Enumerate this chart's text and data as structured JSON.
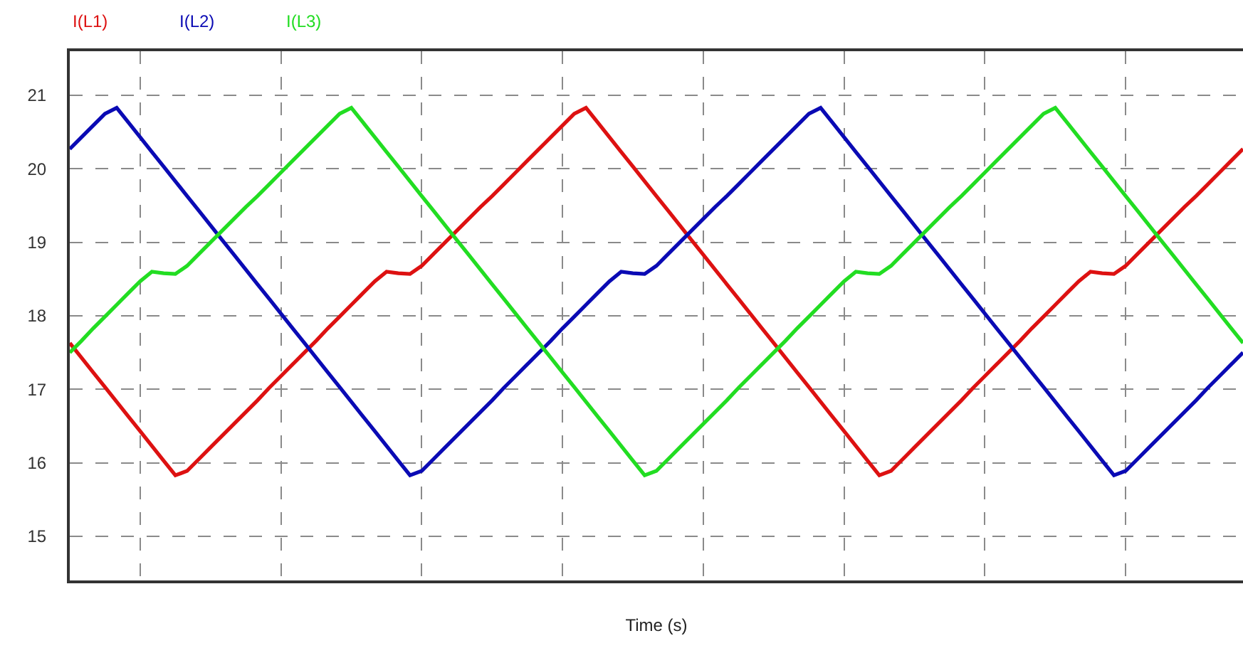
{
  "chart_data": {
    "type": "line",
    "xlabel": "Time (s)",
    "categories": [
      null,
      null,
      null,
      null,
      null,
      null,
      null,
      null,
      null,
      null,
      null,
      null,
      null,
      null,
      null,
      null,
      null,
      null,
      null,
      null,
      null,
      null,
      null,
      null,
      null,
      null,
      null,
      null,
      null,
      null,
      null,
      null,
      null,
      null,
      null,
      null,
      null,
      null,
      null,
      null,
      null,
      null,
      null,
      null,
      null,
      null,
      null,
      null,
      null,
      null,
      null,
      null,
      null,
      null,
      null,
      null,
      null,
      null,
      null,
      null,
      null,
      null,
      null,
      null,
      null,
      null,
      null,
      null,
      null,
      null,
      null,
      null,
      null,
      null,
      null,
      null,
      null,
      null,
      null,
      null,
      null,
      null,
      null,
      null,
      null,
      null,
      null,
      null,
      null,
      null,
      null,
      null,
      null,
      null,
      null,
      null,
      null,
      null,
      null,
      null,
      null
    ],
    "ylim": [
      14.4,
      21.6
    ],
    "yticks": [
      15,
      16,
      17,
      18,
      19,
      20,
      21
    ],
    "grid": true,
    "legend": "top left",
    "tick_labels": "y",
    "series": [
      {
        "name": "I(L1)",
        "color": "#dd1111",
        "values": [
          17.63,
          17.43,
          17.23,
          17.03,
          16.83,
          16.63,
          16.43,
          16.23,
          16.03,
          15.83,
          15.89,
          16.05,
          16.21,
          16.37,
          16.53,
          16.69,
          16.85,
          17.02,
          17.18,
          17.34,
          17.5,
          17.66,
          17.83,
          17.99,
          18.15,
          18.31,
          18.47,
          18.6,
          18.58,
          18.57,
          18.68,
          18.84,
          19.0,
          19.16,
          19.32,
          19.48,
          19.63,
          19.79,
          19.95,
          20.11,
          20.27,
          20.43,
          20.59,
          20.75,
          20.83,
          20.63,
          20.43,
          20.23,
          20.03,
          19.83,
          19.63,
          19.43,
          19.23,
          19.03,
          18.83,
          18.63,
          18.43,
          18.23,
          18.03,
          17.83,
          17.63,
          17.43,
          17.23,
          17.03,
          16.83,
          16.63,
          16.43,
          16.23,
          16.03,
          15.83,
          15.89,
          16.05,
          16.21,
          16.37,
          16.53,
          16.69,
          16.85,
          17.02,
          17.18,
          17.34,
          17.5,
          17.66,
          17.83,
          17.99,
          18.15,
          18.31,
          18.47,
          18.6,
          18.58,
          18.57,
          18.68,
          18.84,
          19.0,
          19.16,
          19.32,
          19.48,
          19.63,
          19.79,
          19.95,
          20.11,
          20.27
        ]
      },
      {
        "name": "I(L2)",
        "color": "#0a0ab4",
        "values": [
          20.27,
          20.43,
          20.59,
          20.75,
          20.83,
          20.63,
          20.43,
          20.23,
          20.03,
          19.83,
          19.63,
          19.43,
          19.23,
          19.03,
          18.83,
          18.63,
          18.43,
          18.23,
          18.03,
          17.83,
          17.63,
          17.43,
          17.23,
          17.03,
          16.83,
          16.63,
          16.43,
          16.23,
          16.03,
          15.83,
          15.89,
          16.05,
          16.21,
          16.37,
          16.53,
          16.69,
          16.85,
          17.02,
          17.18,
          17.34,
          17.5,
          17.66,
          17.83,
          17.99,
          18.15,
          18.31,
          18.47,
          18.6,
          18.58,
          18.57,
          18.68,
          18.84,
          19.0,
          19.16,
          19.32,
          19.48,
          19.63,
          19.79,
          19.95,
          20.11,
          20.27,
          20.43,
          20.59,
          20.75,
          20.83,
          20.63,
          20.43,
          20.23,
          20.03,
          19.83,
          19.63,
          19.43,
          19.23,
          19.03,
          18.83,
          18.63,
          18.43,
          18.23,
          18.03,
          17.83,
          17.63,
          17.43,
          17.23,
          17.03,
          16.83,
          16.63,
          16.43,
          16.23,
          16.03,
          15.83,
          15.89,
          16.05,
          16.21,
          16.37,
          16.53,
          16.69,
          16.85,
          17.02,
          17.18,
          17.34,
          17.5
        ]
      },
      {
        "name": "I(L3)",
        "color": "#22dd22",
        "values": [
          17.5,
          17.66,
          17.83,
          17.99,
          18.15,
          18.31,
          18.47,
          18.6,
          18.58,
          18.57,
          18.68,
          18.84,
          19.0,
          19.16,
          19.32,
          19.48,
          19.63,
          19.79,
          19.95,
          20.11,
          20.27,
          20.43,
          20.59,
          20.75,
          20.83,
          20.63,
          20.43,
          20.23,
          20.03,
          19.83,
          19.63,
          19.43,
          19.23,
          19.03,
          18.83,
          18.63,
          18.43,
          18.23,
          18.03,
          17.83,
          17.63,
          17.43,
          17.23,
          17.03,
          16.83,
          16.63,
          16.43,
          16.23,
          16.03,
          15.83,
          15.89,
          16.05,
          16.21,
          16.37,
          16.53,
          16.69,
          16.85,
          17.02,
          17.18,
          17.34,
          17.5,
          17.66,
          17.83,
          17.99,
          18.15,
          18.31,
          18.47,
          18.6,
          18.58,
          18.57,
          18.68,
          18.84,
          19.0,
          19.16,
          19.32,
          19.48,
          19.63,
          19.79,
          19.95,
          20.11,
          20.27,
          20.43,
          20.59,
          20.75,
          20.83,
          20.63,
          20.43,
          20.23,
          20.03,
          19.83,
          19.63,
          19.43,
          19.23,
          19.03,
          18.83,
          18.63,
          18.43,
          18.23,
          18.03,
          17.83,
          17.63
        ]
      }
    ]
  }
}
